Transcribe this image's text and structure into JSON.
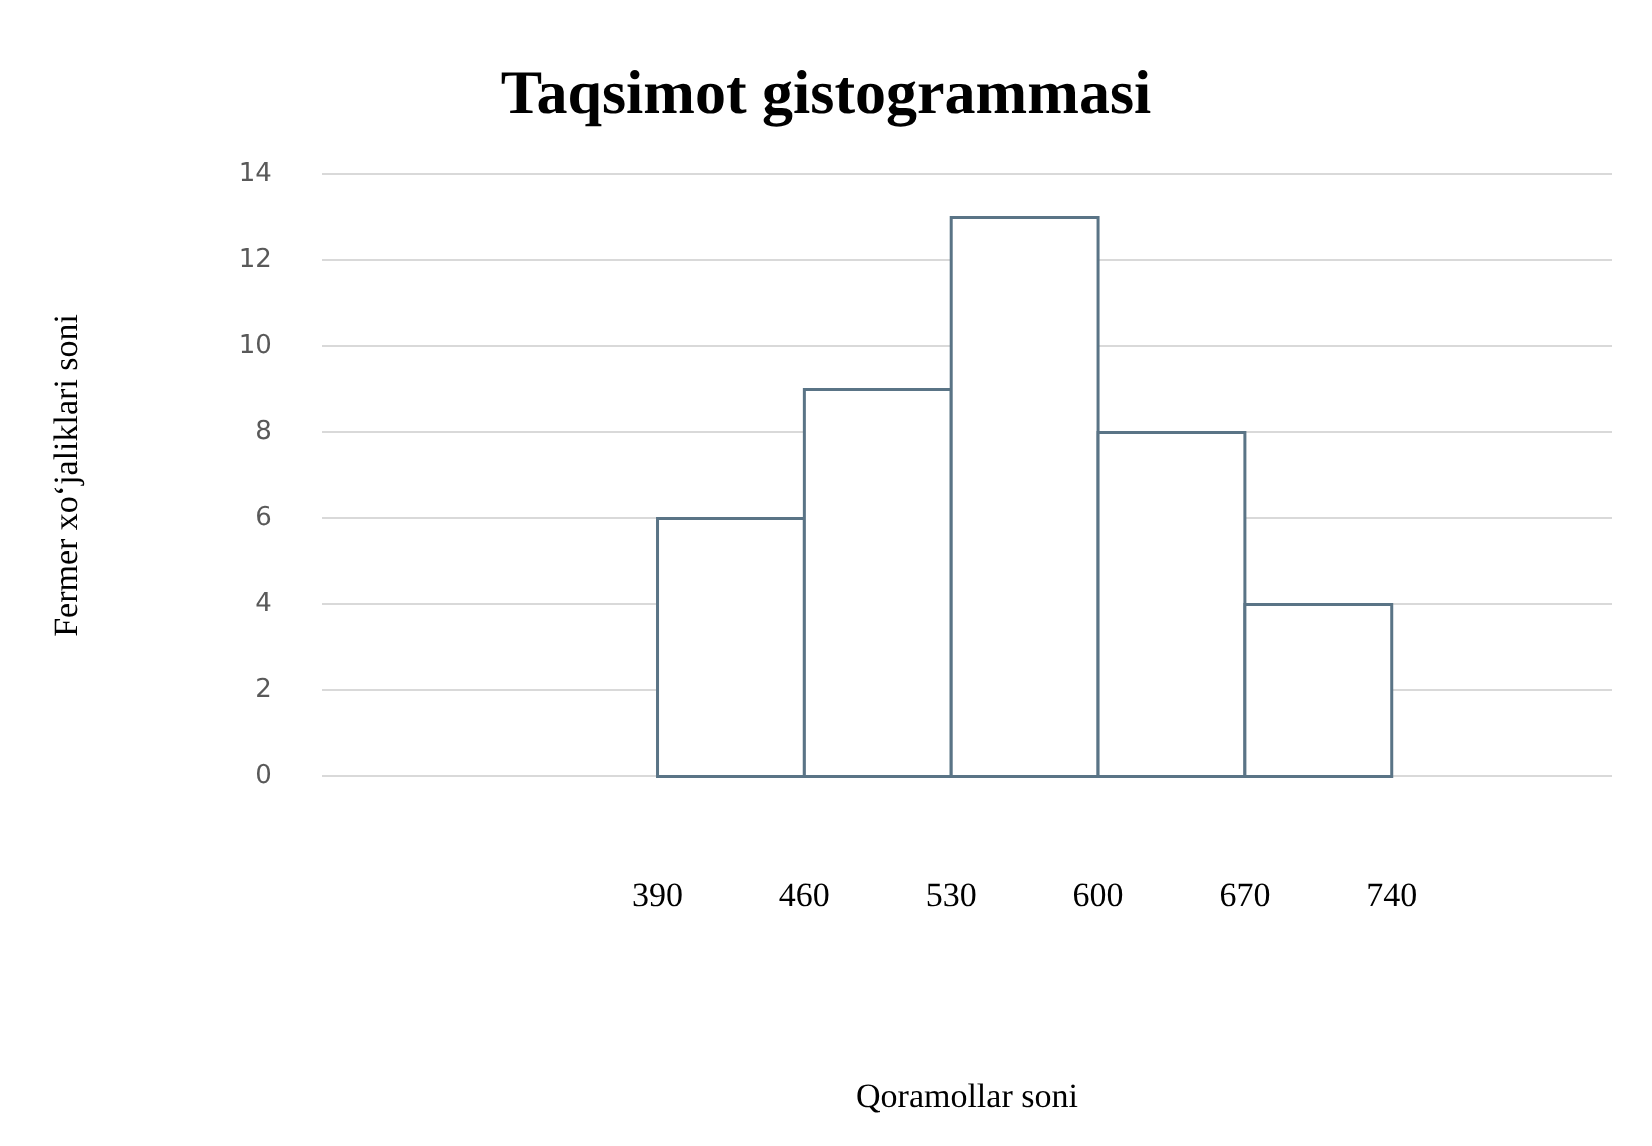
{
  "chart_data": {
    "type": "histogram",
    "title": "Taqsimot gistogrammasi",
    "xlabel": "Qoramollar soni",
    "ylabel": "Fermer xoʻjaliklari soni",
    "bins": [
      390,
      460,
      530,
      600,
      670,
      740
    ],
    "values": [
      6,
      9,
      13,
      8,
      4
    ],
    "color": "#5a7486",
    "xlim": [
      230,
      845
    ],
    "xticks": [
      390,
      460,
      530,
      600,
      670,
      740
    ],
    "ylim": [
      0,
      14
    ],
    "yticks": [
      0,
      2,
      4,
      6,
      8,
      10,
      12,
      14
    ],
    "grid": "y"
  }
}
